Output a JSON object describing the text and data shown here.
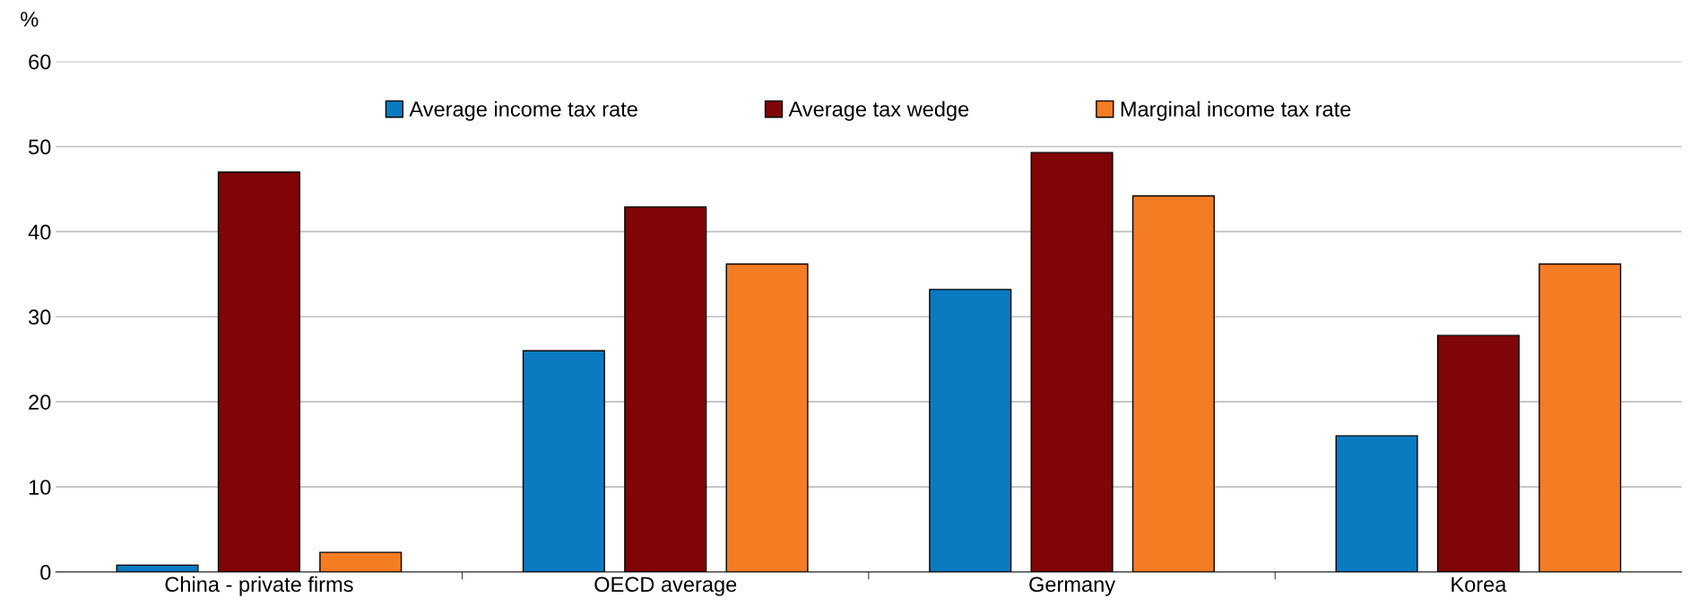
{
  "chart_data": {
    "type": "bar",
    "ylabel": "%",
    "categories": [
      "China - private firms",
      "OECD average",
      "Germany",
      "Korea"
    ],
    "series": [
      {
        "name": "Average income tax rate",
        "color": "#0a7bc1",
        "values": [
          0.8,
          26.0,
          33.2,
          16.0
        ]
      },
      {
        "name": "Average tax wedge",
        "color": "#7f0506",
        "values": [
          47.0,
          42.9,
          49.3,
          27.8
        ]
      },
      {
        "name": "Marginal income tax rate",
        "color": "#f47d23",
        "values": [
          2.3,
          36.2,
          44.2,
          36.2
        ]
      }
    ],
    "ylim": [
      0,
      60
    ],
    "yticks": [
      0,
      10,
      20,
      30,
      40,
      50,
      60
    ],
    "grid": "y",
    "legend": "top"
  }
}
